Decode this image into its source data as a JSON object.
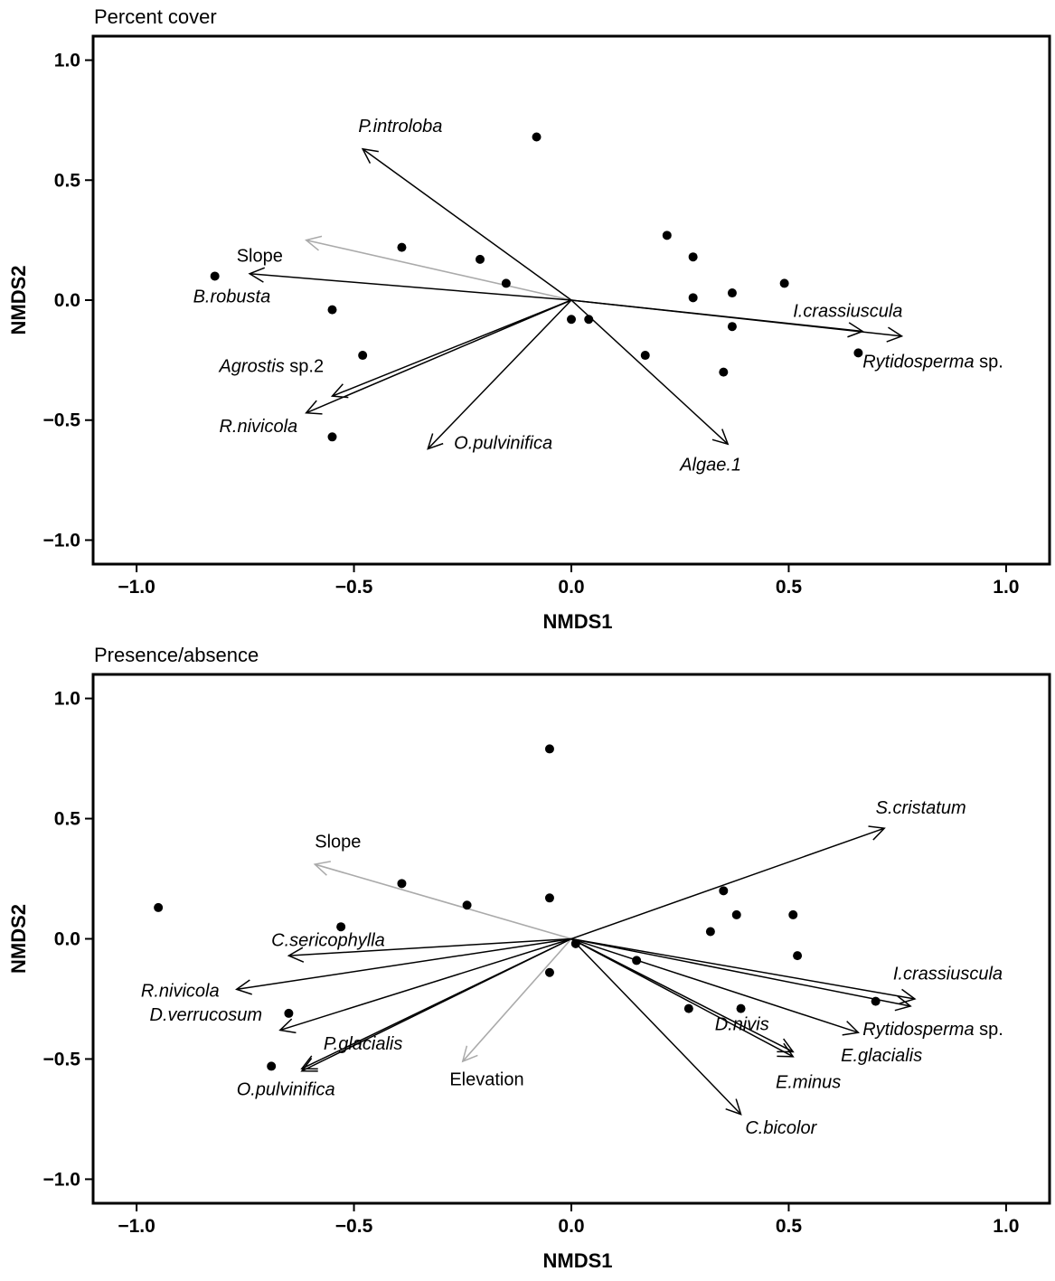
{
  "chart_data": [
    {
      "type": "scatter",
      "title": "Percent cover",
      "xlabel": "NMDS1",
      "ylabel": "NMDS2",
      "xlim": [
        -1.1,
        1.1
      ],
      "ylim": [
        -1.1,
        1.1
      ],
      "xticks": [
        "−1.0",
        "−0.5",
        "0.0",
        "0.5",
        "1.0"
      ],
      "yticks": [
        "1.0",
        "0.5",
        "0.0",
        "−0.5",
        "−1.0"
      ],
      "xtick_values": [
        -1.0,
        -0.5,
        0.0,
        0.5,
        1.0
      ],
      "ytick_values": [
        1.0,
        0.5,
        0.0,
        -0.5,
        -1.0
      ],
      "grid": false,
      "points": [
        {
          "x": -0.82,
          "y": 0.1
        },
        {
          "x": -0.39,
          "y": 0.22
        },
        {
          "x": -0.21,
          "y": 0.17
        },
        {
          "x": -0.15,
          "y": 0.07
        },
        {
          "x": -0.55,
          "y": -0.04
        },
        {
          "x": -0.48,
          "y": -0.23
        },
        {
          "x": -0.55,
          "y": -0.57
        },
        {
          "x": -0.08,
          "y": 0.68
        },
        {
          "x": 0.0,
          "y": -0.08
        },
        {
          "x": 0.04,
          "y": -0.08
        },
        {
          "x": 0.17,
          "y": -0.23
        },
        {
          "x": 0.22,
          "y": 0.27
        },
        {
          "x": 0.28,
          "y": 0.18
        },
        {
          "x": 0.28,
          "y": 0.01
        },
        {
          "x": 0.37,
          "y": 0.03
        },
        {
          "x": 0.37,
          "y": -0.11
        },
        {
          "x": 0.35,
          "y": -0.3
        },
        {
          "x": 0.49,
          "y": 0.07
        },
        {
          "x": 0.66,
          "y": -0.22
        }
      ],
      "species_vectors": [
        {
          "label": "P.introloba",
          "italic": "P.introloba",
          "rest": "",
          "x": -0.48,
          "y": 0.63,
          "lx": -0.49,
          "ly": 0.7,
          "anchor": "start"
        },
        {
          "label": "B.robusta",
          "italic": "B.robusta",
          "rest": "",
          "x": -0.74,
          "y": 0.11,
          "lx": -0.87,
          "ly": -0.01,
          "anchor": "start"
        },
        {
          "label": "Agrostis sp.2",
          "italic": "Agrostis",
          "rest": " sp.2",
          "x": -0.55,
          "y": -0.4,
          "lx": -0.81,
          "ly": -0.3,
          "anchor": "start"
        },
        {
          "label": "R.nivicola",
          "italic": "R.nivicola",
          "rest": "",
          "x": -0.61,
          "y": -0.47,
          "lx": -0.81,
          "ly": -0.55,
          "anchor": "start"
        },
        {
          "label": "O.pulvinifica",
          "italic": "O.pulvinifica",
          "rest": "",
          "x": -0.33,
          "y": -0.62,
          "lx": -0.27,
          "ly": -0.62,
          "anchor": "start"
        },
        {
          "label": "Algae.1",
          "italic": "Algae.1",
          "rest": "",
          "x": 0.36,
          "y": -0.6,
          "lx": 0.25,
          "ly": -0.71,
          "anchor": "start"
        },
        {
          "label": "I.crassiuscula",
          "italic": "I.crassiuscula",
          "rest": "",
          "x": 0.67,
          "y": -0.13,
          "lx": 0.51,
          "ly": -0.07,
          "anchor": "start"
        },
        {
          "label": "Rytidosperma sp.",
          "italic": "Rytidosperma",
          "rest": " sp.",
          "x": 0.76,
          "y": -0.15,
          "lx": 0.67,
          "ly": -0.28,
          "anchor": "start"
        }
      ],
      "env_vectors": [
        {
          "label": "Slope",
          "x": -0.61,
          "y": 0.25,
          "lx": -0.77,
          "ly": 0.16,
          "anchor": "start"
        }
      ]
    },
    {
      "type": "scatter",
      "title": "Presence/absence",
      "xlabel": "NMDS1",
      "ylabel": "NMDS2",
      "xlim": [
        -1.1,
        1.1
      ],
      "ylim": [
        -1.1,
        1.1
      ],
      "xticks": [
        "−1.0",
        "−0.5",
        "0.0",
        "0.5",
        "1.0"
      ],
      "yticks": [
        "1.0",
        "0.5",
        "0.0",
        "−0.5",
        "−1.0"
      ],
      "xtick_values": [
        -1.0,
        -0.5,
        0.0,
        0.5,
        1.0
      ],
      "ytick_values": [
        1.0,
        0.5,
        0.0,
        -0.5,
        -1.0
      ],
      "grid": false,
      "points": [
        {
          "x": -0.95,
          "y": 0.13
        },
        {
          "x": -0.39,
          "y": 0.23
        },
        {
          "x": -0.24,
          "y": 0.14
        },
        {
          "x": -0.53,
          "y": 0.05
        },
        {
          "x": -0.65,
          "y": -0.31
        },
        {
          "x": -0.69,
          "y": -0.53
        },
        {
          "x": -0.05,
          "y": 0.79
        },
        {
          "x": -0.05,
          "y": 0.17
        },
        {
          "x": -0.05,
          "y": -0.14
        },
        {
          "x": 0.01,
          "y": -0.02
        },
        {
          "x": 0.15,
          "y": -0.09
        },
        {
          "x": 0.27,
          "y": -0.29
        },
        {
          "x": 0.35,
          "y": 0.2
        },
        {
          "x": 0.32,
          "y": 0.03
        },
        {
          "x": 0.38,
          "y": 0.1
        },
        {
          "x": 0.39,
          "y": -0.29
        },
        {
          "x": 0.51,
          "y": 0.1
        },
        {
          "x": 0.52,
          "y": -0.07
        },
        {
          "x": 0.7,
          "y": -0.26
        }
      ],
      "species_vectors": [
        {
          "label": "S.cristatum",
          "italic": "S.cristatum",
          "rest": "",
          "x": 0.72,
          "y": 0.46,
          "lx": 0.7,
          "ly": 0.52,
          "anchor": "start"
        },
        {
          "label": "C.sericophylla",
          "italic": "C.sericophylla",
          "rest": "",
          "x": -0.65,
          "y": -0.07,
          "lx": -0.69,
          "ly": -0.03,
          "anchor": "start"
        },
        {
          "label": "R.nivicola",
          "italic": "R.nivicola",
          "rest": "",
          "x": -0.77,
          "y": -0.21,
          "lx": -0.99,
          "ly": -0.24,
          "anchor": "start"
        },
        {
          "label": "D.verrucosum",
          "italic": "D.verrucosum",
          "rest": "",
          "x": -0.67,
          "y": -0.38,
          "lx": -0.97,
          "ly": -0.34,
          "anchor": "start"
        },
        {
          "label": "P.glacialis",
          "italic": "P.glacialis",
          "rest": "",
          "x": -0.62,
          "y": -0.54,
          "lx": -0.57,
          "ly": -0.46,
          "anchor": "start"
        },
        {
          "label": "O.pulvinifica",
          "italic": "O.pulvinifica",
          "rest": "",
          "x": -0.62,
          "y": -0.55,
          "lx": -0.77,
          "ly": -0.65,
          "anchor": "start"
        },
        {
          "label": "I.crassiuscula",
          "italic": "I.crassiuscula",
          "rest": "",
          "x": 0.79,
          "y": -0.25,
          "lx": 0.74,
          "ly": -0.17,
          "anchor": "start"
        },
        {
          "label": "Rytidosperma sp.",
          "italic": "Rytidosperma",
          "rest": " sp.",
          "x": 0.78,
          "y": -0.28,
          "lx": 0.67,
          "ly": -0.4,
          "anchor": "start"
        },
        {
          "label": "E.glacialis",
          "italic": "E.glacialis",
          "rest": "",
          "x": 0.66,
          "y": -0.39,
          "lx": 0.62,
          "ly": -0.51,
          "anchor": "start"
        },
        {
          "label": "D.nivis",
          "italic": "D.nivis",
          "rest": "",
          "x": 0.51,
          "y": -0.47,
          "lx": 0.33,
          "ly": -0.38,
          "anchor": "start"
        },
        {
          "label": "E.minus",
          "italic": "E.minus",
          "rest": "",
          "x": 0.51,
          "y": -0.49,
          "lx": 0.47,
          "ly": -0.62,
          "anchor": "start"
        },
        {
          "label": "C.bicolor",
          "italic": "C.bicolor",
          "rest": "",
          "x": 0.39,
          "y": -0.73,
          "lx": 0.4,
          "ly": -0.81,
          "anchor": "start"
        }
      ],
      "env_vectors": [
        {
          "label": "Slope",
          "x": -0.59,
          "y": 0.31,
          "lx": -0.59,
          "ly": 0.38,
          "anchor": "start"
        },
        {
          "label": "Elevation",
          "x": -0.25,
          "y": -0.51,
          "lx": -0.28,
          "ly": -0.61,
          "anchor": "start"
        }
      ]
    }
  ]
}
